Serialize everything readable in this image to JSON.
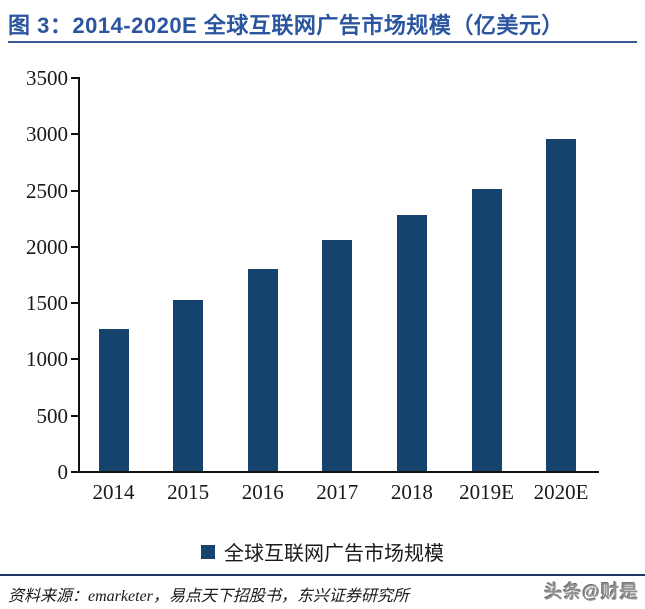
{
  "header": {
    "title": "图 3：2014-2020E 全球互联网广告市场规模（亿美元）"
  },
  "chart_data": {
    "type": "bar",
    "title": "2014-2020E 全球互联网广告市场规模（亿美元）",
    "categories": [
      "2014",
      "2015",
      "2016",
      "2017",
      "2018",
      "2019E",
      "2020E"
    ],
    "values": [
      1270,
      1530,
      1800,
      2060,
      2280,
      2510,
      2960
    ],
    "series_name": "全球互联网广告市场规模",
    "xlabel": "",
    "ylabel": "",
    "ylim": [
      0,
      3500
    ],
    "yticks": [
      0,
      500,
      1000,
      1500,
      2000,
      2500,
      3000,
      3500
    ],
    "grid": false,
    "legend_position": "bottom",
    "bar_color": "#16426E"
  },
  "legend": {
    "label": "全球互联网广告市场规模",
    "marker_color": "#16426E"
  },
  "footer": {
    "source_note": "资料来源：emarketer，易点天下招股书，东兴证券研究所",
    "watermark": "头条@财是"
  },
  "colors": {
    "title_blue": "#2C55A0",
    "rule_blue": "#3A5B96",
    "separator_navy": "#1F3864",
    "bar_navy": "#16426E",
    "axis_black": "#111111"
  }
}
